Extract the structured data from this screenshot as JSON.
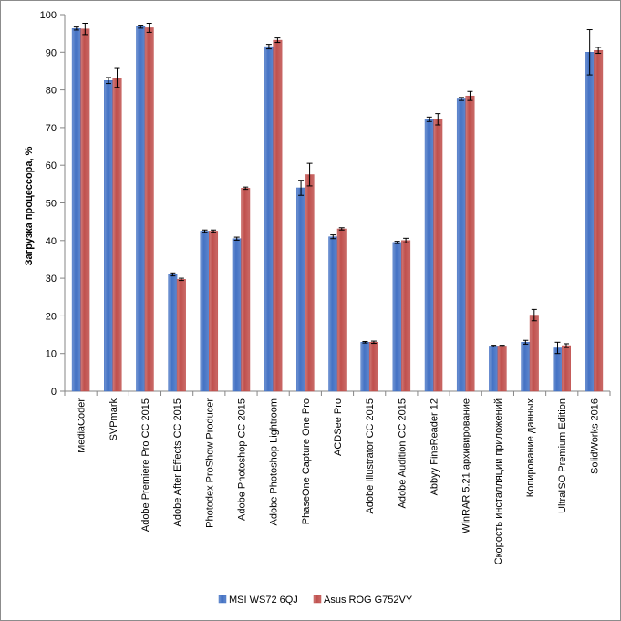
{
  "chart_data": {
    "type": "bar",
    "title": "",
    "xlabel": "",
    "ylabel": "Загрузка процессора, %",
    "ylim": [
      0,
      100
    ],
    "yticks": [
      0,
      10,
      20,
      30,
      40,
      50,
      60,
      70,
      80,
      90,
      100
    ],
    "grid": false,
    "legend_position": "bottom",
    "categories": [
      "MediaCoder",
      "SVPmark",
      "Adobe Premiere Pro CC 2015",
      "Adobe After Effects CC 2015",
      "Photodex ProShow Producer",
      "Adobe Photoshop CC 2015",
      "Adobe Photoshop Lightroom",
      "PhaseOne Capture One Pro",
      "ACDSee Pro",
      "Adobe Illustrator CC 2015",
      "Adobe Audition CC 2015",
      "Abbyy FineReader 12",
      "WinRAR 5.21 архивирование",
      "Скорость инсталляции приложений",
      "Копирование данных",
      "UltraISO Premium Edition",
      "SolidWorks 2016"
    ],
    "series": [
      {
        "name": "MSI WS72 6QJ",
        "color": "#4472C4",
        "values": [
          96.3,
          82.5,
          96.8,
          31.0,
          42.5,
          40.5,
          91.5,
          54.0,
          41.0,
          13.0,
          39.5,
          72.2,
          77.6,
          12.0,
          13.0,
          11.5,
          90.0
        ],
        "errors": [
          0.4,
          0.8,
          0.4,
          0.4,
          0.3,
          0.4,
          0.6,
          2.0,
          0.5,
          0.2,
          0.3,
          0.6,
          0.4,
          0.2,
          0.5,
          1.5,
          6.0
        ]
      },
      {
        "name": "Asus ROG G752VY",
        "color": "#C0504D",
        "values": [
          96.2,
          83.2,
          96.5,
          29.7,
          42.5,
          53.9,
          93.2,
          57.5,
          43.1,
          13.0,
          40.0,
          72.2,
          78.4,
          12.0,
          20.2,
          12.1,
          90.5
        ],
        "errors": [
          1.5,
          2.5,
          1.2,
          0.3,
          0.3,
          0.3,
          0.6,
          3.0,
          0.3,
          0.3,
          0.6,
          1.5,
          1.2,
          0.2,
          1.5,
          0.5,
          0.8
        ]
      }
    ]
  }
}
